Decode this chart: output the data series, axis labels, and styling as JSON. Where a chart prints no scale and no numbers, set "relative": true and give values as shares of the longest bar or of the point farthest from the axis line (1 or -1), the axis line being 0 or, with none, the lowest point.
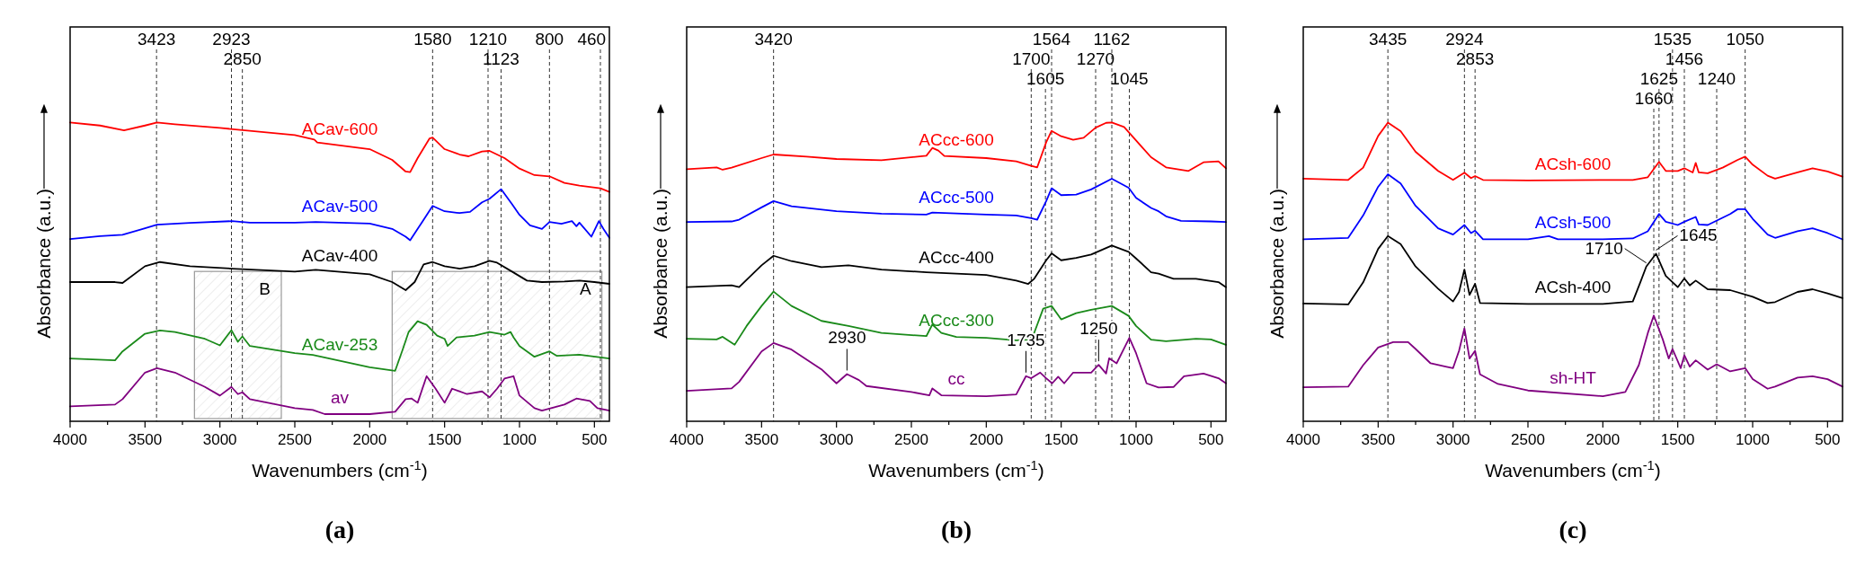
{
  "chart_data": [
    {
      "type": "line",
      "relative": true,
      "title": "(a)",
      "xlabel": "Wavenumbers (cm$^{-1}$)",
      "ylabel": "Absorbance (a.u.)",
      "xlim": [
        4000,
        400
      ],
      "xticks": [
        4000,
        {
          "value": 3750,
          "label": null
        },
        3500,
        {
          "value": 3250,
          "label": null
        },
        3000,
        {
          "value": 2750,
          "label": null
        },
        2500,
        {
          "value": 2250,
          "label": null
        },
        2000,
        {
          "value": 1750,
          "label": null
        },
        1500,
        {
          "value": 1250,
          "label": null
        },
        1000,
        {
          "value": 750,
          "label": null
        },
        500
      ],
      "series": [
        {
          "name": "ACav-600",
          "color": "#ff0000",
          "x": [
            4000,
            3800,
            3640,
            3500,
            3420,
            3300,
            3000,
            2500,
            2370,
            2350,
            2000,
            1850,
            1760,
            1730,
            1680,
            1600,
            1580,
            1500,
            1400,
            1340,
            1250,
            1200,
            1100,
            1000,
            900,
            800,
            700,
            600,
            460,
            400
          ],
          "values": [
            1.0,
            0.99,
            0.974,
            0.99,
            1.0,
            0.994,
            0.982,
            0.958,
            0.943,
            0.933,
            0.911,
            0.875,
            0.836,
            0.834,
            0.881,
            0.947,
            0.95,
            0.911,
            0.893,
            0.887,
            0.903,
            0.905,
            0.881,
            0.846,
            0.824,
            0.82,
            0.798,
            0.789,
            0.78,
            0.768
          ]
        },
        {
          "name": "ACav-500",
          "color": "#0000ff",
          "x": [
            4000,
            3800,
            3650,
            3500,
            3420,
            3200,
            2920,
            2800,
            2500,
            2360,
            2000,
            1850,
            1760,
            1730,
            1650,
            1580,
            1500,
            1400,
            1330,
            1250,
            1200,
            1123,
            1050,
            1000,
            930,
            850,
            800,
            720,
            650,
            620,
            600,
            520,
            470,
            440,
            400
          ],
          "values": [
            0.61,
            0.62,
            0.624,
            0.646,
            0.658,
            0.664,
            0.67,
            0.665,
            0.665,
            0.667,
            0.662,
            0.644,
            0.618,
            0.606,
            0.667,
            0.721,
            0.703,
            0.697,
            0.701,
            0.733,
            0.745,
            0.777,
            0.727,
            0.691,
            0.656,
            0.644,
            0.667,
            0.661,
            0.67,
            0.653,
            0.665,
            0.618,
            0.67,
            0.644,
            0.614
          ]
        },
        {
          "name": "ACav-400",
          "color": "#000000",
          "x": [
            4000,
            3700,
            3650,
            3500,
            3400,
            3200,
            2920,
            2500,
            2360,
            2000,
            1850,
            1760,
            1700,
            1640,
            1580,
            1500,
            1400,
            1300,
            1200,
            1150,
            1050,
            950,
            850,
            700,
            600,
            500,
            400
          ],
          "values": [
            0.466,
            0.466,
            0.463,
            0.519,
            0.533,
            0.519,
            0.511,
            0.501,
            0.507,
            0.492,
            0.466,
            0.439,
            0.466,
            0.525,
            0.533,
            0.519,
            0.511,
            0.519,
            0.537,
            0.531,
            0.501,
            0.471,
            0.466,
            0.468,
            0.471,
            0.466,
            0.46
          ]
        },
        {
          "name": "ACav-253",
          "color": "#1a8a1a",
          "x": [
            4000,
            3700,
            3650,
            3500,
            3400,
            3300,
            3100,
            3000,
            2923,
            2880,
            2850,
            2800,
            2500,
            2380,
            2000,
            1830,
            1780,
            1740,
            1680,
            1620,
            1550,
            1500,
            1480,
            1420,
            1300,
            1200,
            1100,
            1060,
            1040,
            1000,
            900,
            800,
            750,
            600,
            400
          ],
          "values": [
            0.21,
            0.204,
            0.234,
            0.293,
            0.304,
            0.299,
            0.276,
            0.254,
            0.305,
            0.266,
            0.284,
            0.252,
            0.228,
            0.222,
            0.181,
            0.169,
            0.24,
            0.299,
            0.335,
            0.323,
            0.287,
            0.276,
            0.252,
            0.281,
            0.287,
            0.299,
            0.29,
            0.299,
            0.281,
            0.252,
            0.216,
            0.234,
            0.219,
            0.223,
            0.21
          ]
        },
        {
          "name": "av",
          "color": "#800080",
          "x": [
            4000,
            3700,
            3650,
            3500,
            3420,
            3300,
            3100,
            3000,
            2923,
            2880,
            2850,
            2800,
            2500,
            2380,
            2300,
            2000,
            1830,
            1760,
            1720,
            1680,
            1620,
            1560,
            1500,
            1450,
            1350,
            1250,
            1200,
            1150,
            1100,
            1040,
            1000,
            900,
            850,
            700,
            620,
            530,
            480,
            400
          ],
          "values": [
            0.05,
            0.056,
            0.074,
            0.163,
            0.178,
            0.163,
            0.115,
            0.086,
            0.115,
            0.091,
            0.097,
            0.074,
            0.044,
            0.038,
            0.024,
            0.024,
            0.032,
            0.074,
            0.076,
            0.062,
            0.151,
            0.109,
            0.062,
            0.109,
            0.091,
            0.1,
            0.08,
            0.109,
            0.143,
            0.151,
            0.086,
            0.044,
            0.036,
            0.056,
            0.076,
            0.068,
            0.044,
            0.036
          ]
        }
      ],
      "ref_lines": [
        {
          "axis": "x",
          "value": 3423,
          "label": "3423"
        },
        {
          "axis": "x",
          "value": 1580,
          "label": "1580"
        },
        {
          "axis": "x",
          "value": 1210,
          "label": "1210"
        },
        {
          "axis": "x",
          "value": 1123,
          "label": "1123"
        },
        {
          "axis": "x",
          "value": 800,
          "label": "800"
        },
        {
          "axis": "x",
          "value": 460,
          "label": "460"
        },
        {
          "axis": "x",
          "value": 2923,
          "label": "2923"
        },
        {
          "axis": "x",
          "value": 2850,
          "label": "2850"
        }
      ],
      "bands": [
        {
          "axis": "x",
          "from": 3170,
          "to": 2590,
          "label": "B",
          "color": "#999999"
        },
        {
          "axis": "x",
          "from": 1850,
          "to": 450,
          "label": "A",
          "color": "#999999"
        }
      ]
    },
    {
      "type": "line",
      "relative": true,
      "title": "(b)",
      "xlabel": "Wavenumbers (cm$^{-1}$)",
      "ylabel": "Absorbance (a.u.)",
      "xlim": [
        4000,
        400
      ],
      "xticks": [
        4000,
        {
          "value": 3750,
          "label": null
        },
        3500,
        {
          "value": 3250,
          "label": null
        },
        3000,
        {
          "value": 2750,
          "label": null
        },
        2500,
        {
          "value": 2250,
          "label": null
        },
        2000,
        {
          "value": 1750,
          "label": null
        },
        1500,
        {
          "value": 1250,
          "label": null
        },
        1000,
        {
          "value": 750,
          "label": null
        },
        500
      ],
      "series": [
        {
          "name": "ACcc-600",
          "color": "#ff0000",
          "x": [
            4000,
            3800,
            3760,
            3700,
            3500,
            3420,
            3200,
            3000,
            2700,
            2400,
            2360,
            2320,
            2280,
            2000,
            1800,
            1700,
            1660,
            1600,
            1564,
            1500,
            1420,
            1350,
            1270,
            1200,
            1162,
            1080,
            1000,
            900,
            800,
            650,
            550,
            450,
            400
          ],
          "values": [
            0.844,
            0.85,
            0.842,
            0.849,
            0.881,
            0.893,
            0.886,
            0.878,
            0.874,
            0.889,
            0.915,
            0.906,
            0.888,
            0.881,
            0.87,
            0.855,
            0.85,
            0.934,
            0.972,
            0.954,
            0.942,
            0.949,
            0.983,
            0.999,
            1.0,
            0.985,
            0.94,
            0.884,
            0.85,
            0.838,
            0.867,
            0.87,
            0.847
          ]
        },
        {
          "name": "ACcc-500",
          "color": "#0000ff",
          "x": [
            4000,
            3700,
            3650,
            3500,
            3420,
            3300,
            3000,
            2700,
            2400,
            2360,
            2000,
            1800,
            1700,
            1660,
            1600,
            1564,
            1500,
            1400,
            1300,
            1162,
            1050,
            1000,
            900,
            850,
            800,
            700,
            500,
            400
          ],
          "values": [
            0.667,
            0.669,
            0.675,
            0.716,
            0.737,
            0.72,
            0.703,
            0.695,
            0.692,
            0.699,
            0.692,
            0.689,
            0.68,
            0.675,
            0.737,
            0.78,
            0.757,
            0.759,
            0.776,
            0.812,
            0.782,
            0.748,
            0.714,
            0.703,
            0.686,
            0.671,
            0.669,
            0.667
          ]
        },
        {
          "name": "ACcc-400",
          "color": "#000000",
          "x": [
            4000,
            3700,
            3650,
            3500,
            3420,
            3300,
            3100,
            2920,
            2700,
            2400,
            2000,
            1800,
            1720,
            1680,
            1600,
            1564,
            1500,
            1400,
            1300,
            1162,
            1050,
            1000,
            900,
            850,
            750,
            600,
            450,
            400
          ],
          "values": [
            0.449,
            0.455,
            0.449,
            0.522,
            0.554,
            0.536,
            0.516,
            0.522,
            0.508,
            0.499,
            0.49,
            0.471,
            0.46,
            0.477,
            0.539,
            0.562,
            0.539,
            0.547,
            0.558,
            0.588,
            0.567,
            0.545,
            0.499,
            0.494,
            0.477,
            0.477,
            0.466,
            0.449
          ]
        },
        {
          "name": "ACcc-300",
          "color": "#1a8a1a",
          "x": [
            4000,
            3800,
            3760,
            3680,
            3600,
            3500,
            3420,
            3300,
            3100,
            2920,
            2700,
            2400,
            2360,
            2300,
            2200,
            2000,
            1800,
            1720,
            1680,
            1620,
            1564,
            1500,
            1400,
            1300,
            1162,
            1050,
            1000,
            900,
            800,
            600,
            500,
            400
          ],
          "values": [
            0.276,
            0.274,
            0.283,
            0.256,
            0.319,
            0.386,
            0.434,
            0.386,
            0.336,
            0.319,
            0.296,
            0.285,
            0.324,
            0.296,
            0.282,
            0.279,
            0.271,
            0.273,
            0.296,
            0.377,
            0.386,
            0.341,
            0.362,
            0.373,
            0.386,
            0.353,
            0.319,
            0.273,
            0.268,
            0.276,
            0.274,
            0.256
          ]
        },
        {
          "name": "cc",
          "color": "#800080",
          "x": [
            4000,
            3700,
            3650,
            3500,
            3420,
            3300,
            3100,
            3000,
            2930,
            2850,
            2800,
            2500,
            2380,
            2360,
            2300,
            2000,
            1800,
            1735,
            1700,
            1640,
            1600,
            1560,
            1520,
            1480,
            1420,
            1300,
            1250,
            1200,
            1180,
            1130,
            1045,
            1000,
            930,
            850,
            750,
            680,
            550,
            450,
            400
          ],
          "values": [
            0.102,
            0.11,
            0.132,
            0.234,
            0.262,
            0.24,
            0.174,
            0.127,
            0.158,
            0.138,
            0.118,
            0.098,
            0.087,
            0.11,
            0.087,
            0.084,
            0.09,
            0.151,
            0.144,
            0.163,
            0.144,
            0.127,
            0.149,
            0.127,
            0.163,
            0.163,
            0.189,
            0.16,
            0.211,
            0.194,
            0.279,
            0.228,
            0.127,
            0.113,
            0.115,
            0.151,
            0.16,
            0.144,
            0.127
          ]
        }
      ],
      "ref_lines": [
        {
          "axis": "x",
          "value": 3420,
          "label": "3420"
        },
        {
          "axis": "x",
          "value": 1564,
          "label": "1564"
        },
        {
          "axis": "x",
          "value": 1162,
          "label": "1162"
        },
        {
          "axis": "x",
          "value": 1700,
          "label": "1700"
        },
        {
          "axis": "x",
          "value": 1270,
          "label": "1270"
        },
        {
          "axis": "x",
          "value": 1045,
          "label": "1045"
        },
        {
          "axis": "x",
          "value": 1605,
          "label": "1605"
        }
      ],
      "annotations": [
        {
          "text": "2930",
          "x": 2930,
          "y": 0.158
        },
        {
          "text": "1735",
          "x": 1735,
          "y": 0.151
        },
        {
          "text": "1250",
          "x": 1250,
          "y": 0.189
        }
      ]
    },
    {
      "type": "line",
      "relative": true,
      "title": "(c)",
      "xlabel": "Wavenumbers (cm$^{-1}$)",
      "ylabel": "Absorbance (a.u.)",
      "xlim": [
        4000,
        400
      ],
      "xticks": [
        4000,
        {
          "value": 3750,
          "label": null
        },
        3500,
        {
          "value": 3250,
          "label": null
        },
        3000,
        {
          "value": 2750,
          "label": null
        },
        2500,
        {
          "value": 2250,
          "label": null
        },
        2000,
        {
          "value": 1750,
          "label": null
        },
        1500,
        {
          "value": 1250,
          "label": null
        },
        1000,
        {
          "value": 750,
          "label": null
        },
        500
      ],
      "series": [
        {
          "name": "ACsh-600",
          "color": "#ff0000",
          "x": [
            4000,
            3700,
            3600,
            3500,
            3435,
            3350,
            3250,
            3100,
            3000,
            2924,
            2880,
            2853,
            2800,
            2500,
            2000,
            1800,
            1700,
            1625,
            1580,
            1500,
            1456,
            1400,
            1380,
            1360,
            1300,
            1200,
            1100,
            1050,
            1000,
            900,
            850,
            700,
            600,
            500,
            400
          ],
          "values": [
            0.812,
            0.808,
            0.849,
            0.955,
            1.0,
            0.971,
            0.902,
            0.838,
            0.808,
            0.832,
            0.814,
            0.821,
            0.808,
            0.806,
            0.808,
            0.808,
            0.817,
            0.868,
            0.838,
            0.838,
            0.847,
            0.833,
            0.865,
            0.833,
            0.83,
            0.849,
            0.875,
            0.886,
            0.859,
            0.822,
            0.812,
            0.833,
            0.847,
            0.836,
            0.819
          ]
        },
        {
          "name": "ACsh-500",
          "color": "#0000ff",
          "x": [
            4000,
            3700,
            3600,
            3500,
            3435,
            3350,
            3250,
            3100,
            3000,
            2924,
            2880,
            2853,
            2800,
            2500,
            2360,
            2300,
            2000,
            1800,
            1700,
            1625,
            1580,
            1500,
            1456,
            1380,
            1360,
            1300,
            1150,
            1100,
            1050,
            1000,
            900,
            850,
            700,
            600,
            500,
            400
          ],
          "values": [
            0.609,
            0.614,
            0.689,
            0.785,
            0.827,
            0.796,
            0.721,
            0.646,
            0.625,
            0.657,
            0.63,
            0.638,
            0.609,
            0.609,
            0.62,
            0.609,
            0.609,
            0.612,
            0.636,
            0.694,
            0.668,
            0.657,
            0.668,
            0.684,
            0.659,
            0.657,
            0.694,
            0.71,
            0.71,
            0.678,
            0.625,
            0.614,
            0.636,
            0.646,
            0.63,
            0.609
          ]
        },
        {
          "name": "ACsh-400",
          "color": "#000000",
          "x": [
            4000,
            3700,
            3600,
            3500,
            3435,
            3350,
            3250,
            3100,
            3000,
            2960,
            2924,
            2890,
            2853,
            2820,
            2500,
            2000,
            1800,
            1750,
            1710,
            1645,
            1580,
            1500,
            1456,
            1420,
            1380,
            1300,
            1150,
            1000,
            900,
            850,
            700,
            600,
            500,
            400
          ],
          "values": [
            0.394,
            0.391,
            0.465,
            0.577,
            0.62,
            0.593,
            0.518,
            0.444,
            0.401,
            0.433,
            0.508,
            0.423,
            0.46,
            0.396,
            0.393,
            0.393,
            0.401,
            0.465,
            0.518,
            0.561,
            0.487,
            0.449,
            0.478,
            0.455,
            0.471,
            0.442,
            0.439,
            0.417,
            0.396,
            0.399,
            0.433,
            0.442,
            0.428,
            0.412
          ]
        },
        {
          "name": "sh-HT",
          "color": "#800080",
          "x": [
            4000,
            3700,
            3600,
            3500,
            3400,
            3300,
            3250,
            3150,
            3050,
            3000,
            2960,
            2924,
            2890,
            2853,
            2820,
            2700,
            2500,
            2000,
            1850,
            1760,
            1700,
            1660,
            1600,
            1560,
            1535,
            1480,
            1456,
            1420,
            1380,
            1300,
            1240,
            1150,
            1050,
            1000,
            900,
            850,
            700,
            600,
            500,
            400
          ],
          "values": [
            0.114,
            0.116,
            0.188,
            0.247,
            0.265,
            0.265,
            0.242,
            0.194,
            0.183,
            0.178,
            0.236,
            0.311,
            0.21,
            0.236,
            0.157,
            0.125,
            0.103,
            0.084,
            0.098,
            0.188,
            0.295,
            0.354,
            0.274,
            0.21,
            0.242,
            0.178,
            0.221,
            0.183,
            0.204,
            0.173,
            0.191,
            0.167,
            0.178,
            0.141,
            0.109,
            0.116,
            0.146,
            0.151,
            0.141,
            0.116
          ]
        }
      ],
      "ref_lines": [
        {
          "axis": "x",
          "value": 3435,
          "label": "3435"
        },
        {
          "axis": "x",
          "value": 1535,
          "label": "1535"
        },
        {
          "axis": "x",
          "value": 1050,
          "label": "1050"
        },
        {
          "axis": "x",
          "value": 2924,
          "label": "2924"
        },
        {
          "axis": "x",
          "value": 1456,
          "label": "1456"
        },
        {
          "axis": "x",
          "value": 2853,
          "label": "2853"
        },
        {
          "axis": "x",
          "value": 1625,
          "label": "1625"
        },
        {
          "axis": "x",
          "value": 1660,
          "label": "1660"
        },
        {
          "axis": "x",
          "value": 1240,
          "label": "1240"
        }
      ],
      "annotations": [
        {
          "text": "1710",
          "x": 1710,
          "y": 0.518
        },
        {
          "text": "1645",
          "x": 1645,
          "y": 0.561
        }
      ]
    }
  ]
}
